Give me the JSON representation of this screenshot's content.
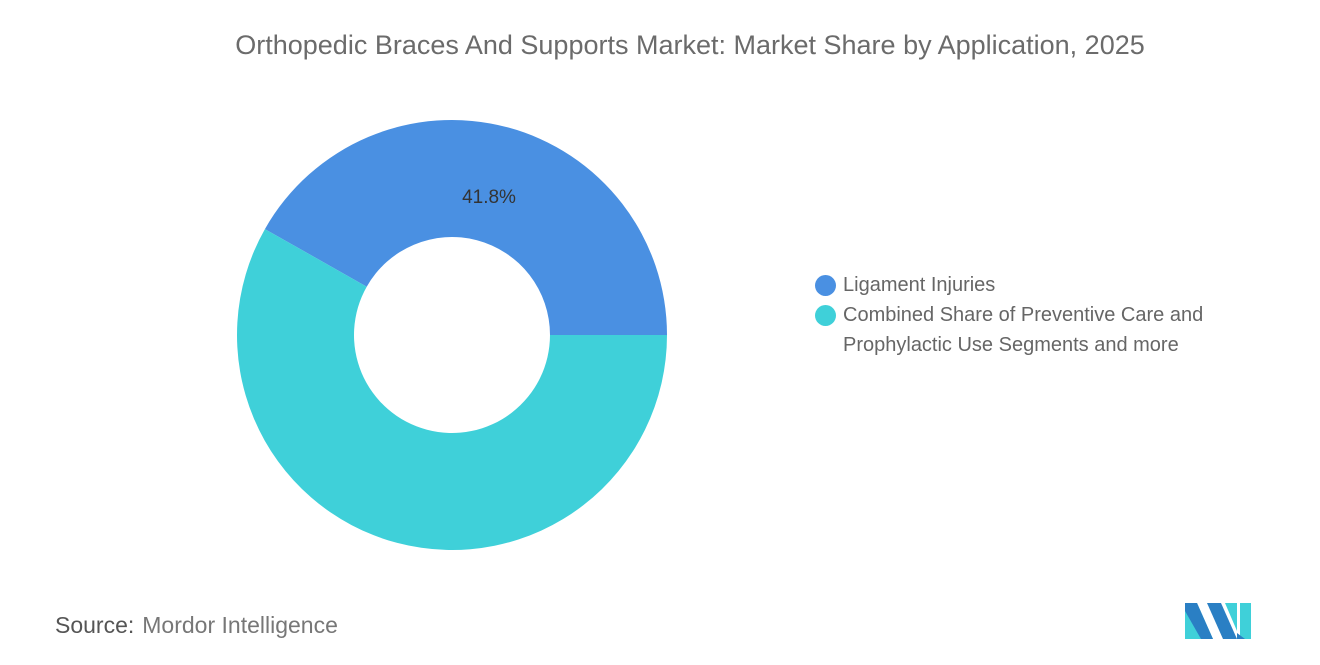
{
  "chart_data": {
    "type": "pie",
    "variant": "donut",
    "title": "Orthopedic Braces And Supports Market: Market Share by Application, 2025",
    "categories": [
      "Ligament Injuries",
      "Combined Share of Preventive Care and Prophylactic Use Segments and more"
    ],
    "values": [
      41.8,
      58.2
    ],
    "data_labels": [
      "41.8%",
      ""
    ],
    "colors": [
      "#4a90e2",
      "#3fd0d9"
    ],
    "legend_placement": "right"
  },
  "source": {
    "label": "Source:",
    "value": "Mordor Intelligence"
  },
  "logo": {
    "name": "mordor-intelligence-logo"
  }
}
